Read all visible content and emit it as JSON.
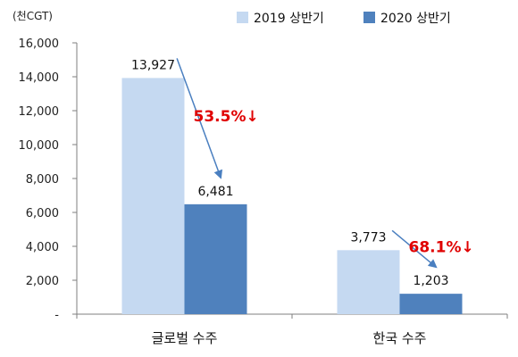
{
  "chart_data": {
    "type": "bar",
    "unit_label": "(천CGT)",
    "categories": [
      "글로벌 수주",
      "한국 수주"
    ],
    "series": [
      {
        "name": "2019 상반기",
        "values": [
          13927,
          3773
        ],
        "color": "#c5d9f1"
      },
      {
        "name": "2020 상반기",
        "values": [
          6481,
          1203
        ],
        "color": "#4f81bd"
      }
    ],
    "data_labels": [
      [
        "13,927",
        "3,773"
      ],
      [
        "6,481",
        "1,203"
      ]
    ],
    "ylim": [
      0,
      16000
    ],
    "yticks": [
      0,
      2000,
      4000,
      6000,
      8000,
      10000,
      12000,
      14000,
      16000
    ],
    "ytick_labels": [
      "-",
      "2,000",
      "4,000",
      "6,000",
      "8,000",
      "10,000",
      "12,000",
      "14,000",
      "16,000"
    ],
    "grid": false,
    "legend_position": "top-right",
    "annotations": [
      {
        "text": "53.5%↓",
        "category": "글로벌 수주",
        "color": "#e00000"
      },
      {
        "text": "68.1%↓",
        "category": "한국 수주",
        "color": "#e00000"
      }
    ],
    "arrow_color": "#4a7fc0"
  }
}
